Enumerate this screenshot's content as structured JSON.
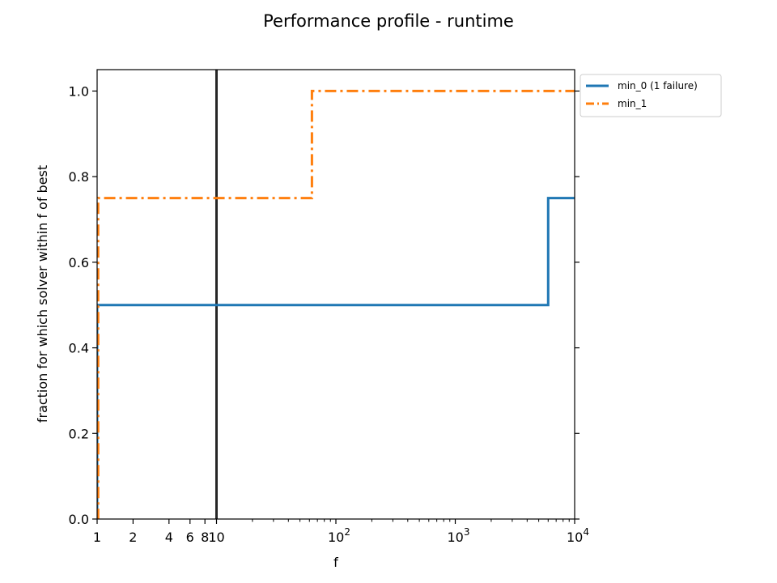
{
  "chart_data": {
    "type": "line",
    "title": "Performance profile - runtime",
    "xlabel": "f",
    "ylabel": "fraction for which solver within f of best",
    "x_scale": "log",
    "xlim": [
      1,
      10000
    ],
    "ylim": [
      0,
      1.05
    ],
    "grid": false,
    "legend_placement": "outside-top-right",
    "x_ticks": [
      {
        "value": 1,
        "label": "1"
      },
      {
        "value": 2,
        "label": "2"
      },
      {
        "value": 4,
        "label": "4"
      },
      {
        "value": 6,
        "label": "6"
      },
      {
        "value": 8,
        "label": "8"
      },
      {
        "value": 10,
        "label": "10"
      },
      {
        "value": 100,
        "base": "10",
        "exp": "2"
      },
      {
        "value": 1000,
        "base": "10",
        "exp": "3"
      },
      {
        "value": 10000,
        "base": "10",
        "exp": "4"
      }
    ],
    "y_ticks": [
      {
        "value": 0.0,
        "label": "0.0"
      },
      {
        "value": 0.2,
        "label": "0.2"
      },
      {
        "value": 0.4,
        "label": "0.4"
      },
      {
        "value": 0.6,
        "label": "0.6"
      },
      {
        "value": 0.8,
        "label": "0.8"
      },
      {
        "value": 1.0,
        "label": "1.0"
      }
    ],
    "reference_line": {
      "x": 10,
      "color": "#262626"
    },
    "series": [
      {
        "name": "min_0 (1 failure)",
        "color": "#1f77b4",
        "style": "solid",
        "step_points": [
          [
            1,
            0.0
          ],
          [
            1,
            0.5
          ],
          [
            6000,
            0.5
          ],
          [
            6000,
            0.75
          ],
          [
            10000,
            0.75
          ]
        ]
      },
      {
        "name": "min_1",
        "color": "#ff7f0e",
        "style": "dashdot",
        "step_points": [
          [
            1,
            0.0
          ],
          [
            1.02,
            0.0
          ],
          [
            1.02,
            0.75
          ],
          [
            63,
            0.75
          ],
          [
            63,
            1.0
          ],
          [
            10000,
            1.0
          ]
        ]
      }
    ]
  }
}
